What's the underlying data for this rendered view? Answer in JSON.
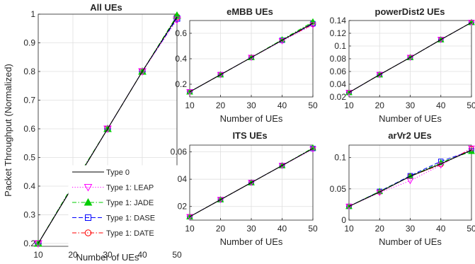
{
  "shared_ylabel": "Packet Throughput (Normalized)",
  "legend": [
    {
      "label": "Type 0",
      "color": "#000000",
      "marker": "none",
      "dash": "solid"
    },
    {
      "label": "Type 1: LEAP",
      "color": "#ff00ff",
      "marker": "triangle-down",
      "dash": "dotted"
    },
    {
      "label": "Type 1: JADE",
      "color": "#00cc00",
      "marker": "triangle-up",
      "dash": "dashdot"
    },
    {
      "label": "Type 1: DASE",
      "color": "#0000ff",
      "marker": "square",
      "dash": "dashed"
    },
    {
      "label": "Type 1: DATE",
      "color": "#ff0000",
      "marker": "circle",
      "dash": "dashdot"
    }
  ],
  "chart_data": [
    {
      "type": "line",
      "title": "All UEs",
      "xlabel": "Number of UEs",
      "ylabel": "Packet Throughput (Normalized)",
      "x": [
        10,
        20,
        30,
        40,
        50
      ],
      "xlim": [
        10,
        50
      ],
      "ylim": [
        0.19,
        1.0
      ],
      "xticks": [
        10,
        20,
        30,
        40,
        50
      ],
      "yticks": [
        0.2,
        0.3,
        0.4,
        0.5,
        0.6,
        0.7,
        0.8,
        0.9,
        1
      ],
      "ytick_labels": [
        "0.2",
        "0.3",
        "0.4",
        "0.5",
        "0.6",
        "0.7",
        "0.8",
        "0.9",
        "1"
      ],
      "grid": true,
      "legend_position": "bottom-right",
      "series": [
        {
          "name": "Type 0",
          "values": [
            0.2,
            0.4,
            0.6,
            0.8,
            0.99
          ]
        },
        {
          "name": "Type 1: LEAP",
          "values": [
            0.2,
            0.4,
            0.6,
            0.8,
            0.98
          ]
        },
        {
          "name": "Type 1: JADE",
          "values": [
            0.2,
            0.405,
            0.6,
            0.8,
            0.995
          ]
        },
        {
          "name": "Type 1: DASE",
          "values": [
            0.2,
            0.4,
            0.6,
            0.8,
            0.985
          ]
        },
        {
          "name": "Type 1: DATE",
          "values": [
            0.2,
            0.4,
            0.6,
            0.8,
            0.99
          ]
        }
      ]
    },
    {
      "type": "line",
      "title": "eMBB UEs",
      "xlabel": "Number of UEs",
      "ylabel": "",
      "x": [
        10,
        20,
        30,
        40,
        50
      ],
      "xlim": [
        10,
        50
      ],
      "ylim": [
        0.1,
        0.7
      ],
      "xticks": [
        10,
        20,
        30,
        40,
        50
      ],
      "yticks": [
        0.2,
        0.4,
        0.6
      ],
      "ytick_labels": [
        "0.2",
        "0.4",
        "0.6"
      ],
      "grid": true,
      "series": [
        {
          "name": "Type 0",
          "values": [
            0.14,
            0.275,
            0.41,
            0.545,
            0.68
          ]
        },
        {
          "name": "Type 1: LEAP",
          "values": [
            0.14,
            0.275,
            0.41,
            0.54,
            0.665
          ]
        },
        {
          "name": "Type 1: JADE",
          "values": [
            0.14,
            0.275,
            0.41,
            0.55,
            0.69
          ]
        },
        {
          "name": "Type 1: DASE",
          "values": [
            0.14,
            0.275,
            0.41,
            0.545,
            0.675
          ]
        },
        {
          "name": "Type 1: DATE",
          "values": [
            0.14,
            0.275,
            0.41,
            0.545,
            0.67
          ]
        }
      ]
    },
    {
      "type": "line",
      "title": "powerDist2 UEs",
      "xlabel": "Number of UEs",
      "ylabel": "",
      "x": [
        10,
        20,
        30,
        40,
        50
      ],
      "xlim": [
        10,
        50
      ],
      "ylim": [
        0.02,
        0.14
      ],
      "xticks": [
        10,
        20,
        30,
        40,
        50
      ],
      "yticks": [
        0.02,
        0.04,
        0.06,
        0.08,
        0.1,
        0.12,
        0.14
      ],
      "ytick_labels": [
        "0.02",
        "0.04",
        "0.06",
        "0.08",
        "0.1",
        "0.12",
        "0.14"
      ],
      "grid": true,
      "series": [
        {
          "name": "Type 0",
          "values": [
            0.027,
            0.055,
            0.082,
            0.11,
            0.137
          ]
        },
        {
          "name": "Type 1: LEAP",
          "values": [
            0.027,
            0.055,
            0.082,
            0.11,
            0.137
          ]
        },
        {
          "name": "Type 1: JADE",
          "values": [
            0.027,
            0.055,
            0.082,
            0.11,
            0.137
          ]
        },
        {
          "name": "Type 1: DASE",
          "values": [
            0.027,
            0.055,
            0.082,
            0.11,
            0.137
          ]
        },
        {
          "name": "Type 1: DATE",
          "values": [
            0.027,
            0.055,
            0.082,
            0.11,
            0.137
          ]
        }
      ]
    },
    {
      "type": "line",
      "title": "ITS UEs",
      "xlabel": "Number of UEs",
      "ylabel": "",
      "x": [
        10,
        20,
        30,
        40,
        50
      ],
      "xlim": [
        10,
        50
      ],
      "ylim": [
        0.01,
        0.065
      ],
      "xticks": [
        10,
        20,
        30,
        40,
        50
      ],
      "yticks": [
        0.02,
        0.04,
        0.06
      ],
      "ytick_labels": [
        "0.02",
        "0.04",
        "0.06"
      ],
      "grid": true,
      "series": [
        {
          "name": "Type 0",
          "values": [
            0.0125,
            0.025,
            0.0375,
            0.05,
            0.0625
          ]
        },
        {
          "name": "Type 1: LEAP",
          "values": [
            0.0125,
            0.025,
            0.0375,
            0.05,
            0.062
          ]
        },
        {
          "name": "Type 1: JADE",
          "values": [
            0.0125,
            0.025,
            0.0375,
            0.05,
            0.063
          ]
        },
        {
          "name": "Type 1: DASE",
          "values": [
            0.0125,
            0.025,
            0.0375,
            0.05,
            0.0625
          ]
        },
        {
          "name": "Type 1: DATE",
          "values": [
            0.0125,
            0.025,
            0.0375,
            0.05,
            0.0625
          ]
        }
      ]
    },
    {
      "type": "line",
      "title": "arVr2 UEs",
      "xlabel": "Number of UEs",
      "ylabel": "",
      "x": [
        10,
        20,
        30,
        40,
        50
      ],
      "xlim": [
        10,
        50
      ],
      "ylim": [
        0,
        0.12
      ],
      "xticks": [
        10,
        20,
        30,
        40,
        50
      ],
      "yticks": [
        0,
        0.05,
        0.1
      ],
      "ytick_labels": [
        "0",
        "0.05",
        "0.1"
      ],
      "grid": true,
      "series": [
        {
          "name": "Type 0",
          "values": [
            0.022,
            0.045,
            0.07,
            0.09,
            0.112
          ]
        },
        {
          "name": "Type 1: LEAP",
          "values": [
            0.022,
            0.044,
            0.063,
            0.088,
            0.115
          ]
        },
        {
          "name": "Type 1: JADE",
          "values": [
            0.022,
            0.046,
            0.07,
            0.092,
            0.11
          ]
        },
        {
          "name": "Type 1: DASE",
          "values": [
            0.022,
            0.046,
            0.071,
            0.094,
            0.111
          ]
        },
        {
          "name": "Type 1: DATE",
          "values": [
            0.022,
            0.045,
            0.07,
            0.089,
            0.114
          ]
        }
      ]
    }
  ]
}
